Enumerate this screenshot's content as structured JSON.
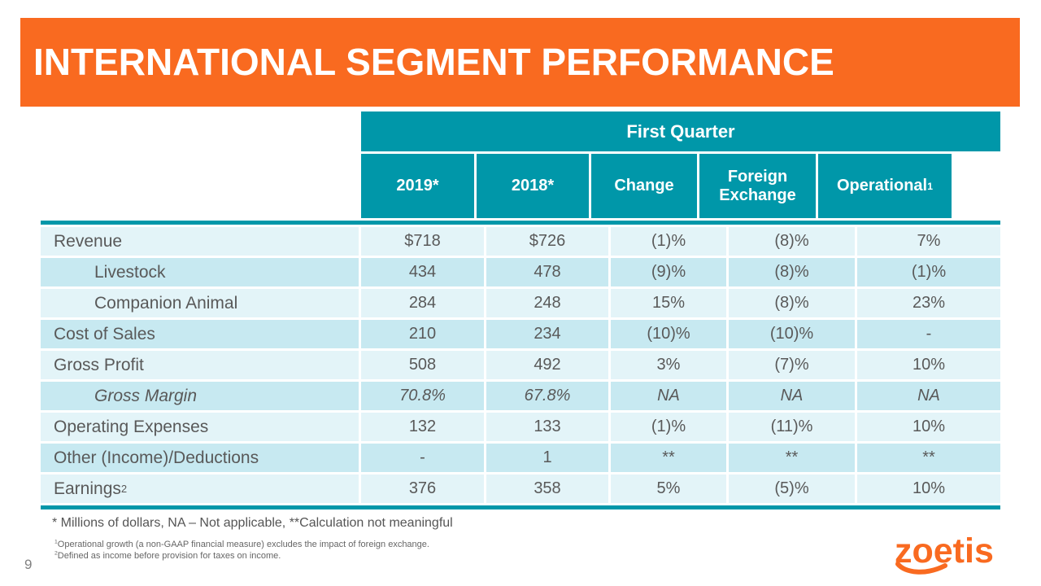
{
  "slide": {
    "title": "INTERNATIONAL SEGMENT PERFORMANCE",
    "page_number": "9",
    "logo": "zoetis"
  },
  "table": {
    "group_header": "First Quarter",
    "columns": [
      {
        "label": "2019*"
      },
      {
        "label": "2018*"
      },
      {
        "label": "Change"
      },
      {
        "label": "Foreign Exchange"
      },
      {
        "label": "Operational",
        "sup": "1"
      }
    ],
    "rows": [
      {
        "label": "Revenue",
        "values": [
          "$718",
          "$726",
          "(1)%",
          "(8)%",
          "7%"
        ]
      },
      {
        "label": "Livestock",
        "indent": true,
        "values": [
          "434",
          "478",
          "(9)%",
          "(8)%",
          "(1)%"
        ]
      },
      {
        "label": "Companion Animal",
        "indent": true,
        "values": [
          "284",
          "248",
          "15%",
          "(8)%",
          "23%"
        ]
      },
      {
        "label": "Cost of Sales",
        "values": [
          "210",
          "234",
          "(10)%",
          "(10)%",
          "-"
        ]
      },
      {
        "label": "Gross Profit",
        "values": [
          "508",
          "492",
          "3%",
          "(7)%",
          "10%"
        ]
      },
      {
        "label": "Gross Margin",
        "indent": true,
        "italic": true,
        "values": [
          "70.8%",
          "67.8%",
          "NA",
          "NA",
          "NA"
        ]
      },
      {
        "label": "Operating Expenses",
        "values": [
          "132",
          "133",
          "(1)%",
          "(11)%",
          "10%"
        ]
      },
      {
        "label": "Other (Income)/Deductions",
        "values": [
          "-",
          "1",
          "**",
          "**",
          "**"
        ]
      },
      {
        "label": "Earnings",
        "sup": "2",
        "values": [
          "376",
          "358",
          "5%",
          "(5)%",
          "10%"
        ]
      }
    ]
  },
  "footnotes": {
    "main": "* Millions of dollars, NA – Not applicable, **Calculation not meaningful",
    "note1_sup": "1",
    "note1": "Operational growth (a non-GAAP financial measure) excludes the impact of foreign exchange.",
    "note2_sup": "2",
    "note2": "Defined as income before provision for taxes on income."
  },
  "colors": {
    "accent_orange": "#F96A20",
    "header_teal": "#0097A9",
    "row_light": "#E3F4F8",
    "row_dark": "#C7E9F1",
    "text_gray": "#595959"
  }
}
